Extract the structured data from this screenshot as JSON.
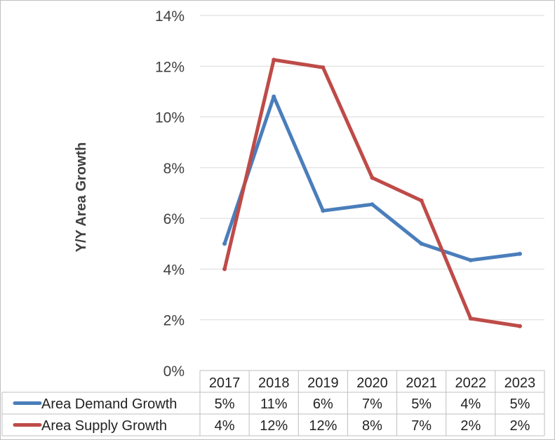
{
  "chart_data": {
    "type": "line",
    "ylabel": "Y/Y Area Growth",
    "xlabel": "",
    "title": "",
    "ylim": [
      0,
      14
    ],
    "y_tick_labels": [
      "0%",
      "2%",
      "4%",
      "6%",
      "8%",
      "10%",
      "12%",
      "14%"
    ],
    "categories": [
      "2017",
      "2018",
      "2019",
      "2020",
      "2021",
      "2022",
      "2023"
    ],
    "grid": true,
    "legend": "data-table",
    "series": [
      {
        "name": "Area Demand Growth",
        "color": "#4a7ebb",
        "values": [
          5.0,
          10.8,
          6.3,
          6.55,
          5.0,
          4.35,
          4.6
        ],
        "table_labels": [
          "5%",
          "11%",
          "6%",
          "7%",
          "5%",
          "4%",
          "5%"
        ]
      },
      {
        "name": "Area Supply Growth",
        "color": "#be4b48",
        "values": [
          4.0,
          12.25,
          11.95,
          7.6,
          6.7,
          2.05,
          1.75
        ],
        "table_labels": [
          "4%",
          "12%",
          "12%",
          "8%",
          "7%",
          "2%",
          "2%"
        ]
      }
    ]
  }
}
